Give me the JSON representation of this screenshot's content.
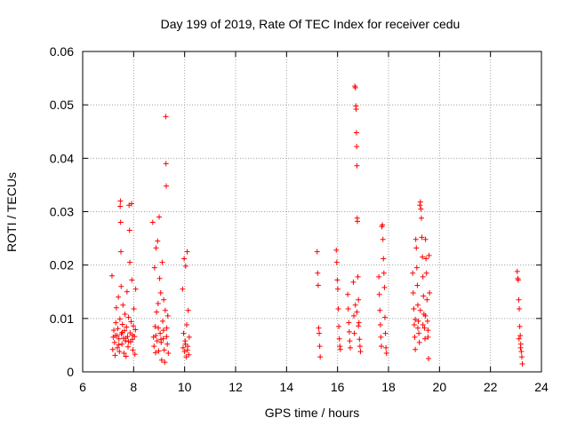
{
  "chart_data": {
    "type": "scatter",
    "title": "Day 199 of 2019, Rate Of TEC Index for receiver cedu",
    "xlabel": "GPS time / hours",
    "ylabel": "ROTI / TECUs",
    "xlim": [
      6,
      24
    ],
    "ylim": [
      0,
      0.06
    ],
    "xticks": [
      6,
      8,
      10,
      12,
      14,
      16,
      18,
      20,
      22,
      24
    ],
    "xtick_labels": [
      "6",
      "8",
      "10",
      "12",
      "14",
      "16",
      "18",
      "20",
      "22",
      "24"
    ],
    "yticks": [
      0,
      0.01,
      0.02,
      0.03,
      0.04,
      0.05,
      0.06
    ],
    "ytick_labels": [
      "0",
      "0.01",
      "0.02",
      "0.03",
      "0.04",
      "0.05",
      "0.06"
    ],
    "grid": true,
    "marker": "+",
    "color": "#ff0000",
    "series": [
      {
        "name": "ROTI",
        "points": [
          [
            7.15,
            0.018
          ],
          [
            7.18,
            0.0042
          ],
          [
            7.2,
            0.0065
          ],
          [
            7.22,
            0.0078
          ],
          [
            7.25,
            0.0055
          ],
          [
            7.27,
            0.0031
          ],
          [
            7.3,
            0.0092
          ],
          [
            7.32,
            0.012
          ],
          [
            7.35,
            0.0068
          ],
          [
            7.36,
            0.0045
          ],
          [
            7.38,
            0.0081
          ],
          [
            7.4,
            0.014
          ],
          [
            7.42,
            0.0062
          ],
          [
            7.44,
            0.0038
          ],
          [
            7.46,
            0.0099
          ],
          [
            7.47,
            0.031
          ],
          [
            7.48,
            0.032
          ],
          [
            7.49,
            0.028
          ],
          [
            7.5,
            0.0225
          ],
          [
            7.51,
            0.016
          ],
          [
            7.52,
            0.0071
          ],
          [
            7.54,
            0.0052
          ],
          [
            7.56,
            0.0089
          ],
          [
            7.58,
            0.0125
          ],
          [
            7.6,
            0.0063
          ],
          [
            7.62,
            0.0035
          ],
          [
            7.64,
            0.0077
          ],
          [
            7.66,
            0.0108
          ],
          [
            7.68,
            0.0058
          ],
          [
            7.7,
            0.0029
          ],
          [
            7.72,
            0.0084
          ],
          [
            7.74,
            0.015
          ],
          [
            7.76,
            0.0066
          ],
          [
            7.78,
            0.0047
          ],
          [
            7.8,
            0.0102
          ],
          [
            7.82,
            0.0312
          ],
          [
            7.84,
            0.0265
          ],
          [
            7.85,
            0.0205
          ],
          [
            7.86,
            0.0073
          ],
          [
            7.88,
            0.0056
          ],
          [
            7.9,
            0.0094
          ],
          [
            7.92,
            0.0315
          ],
          [
            7.93,
            0.0172
          ],
          [
            7.95,
            0.0061
          ],
          [
            7.97,
            0.0041
          ],
          [
            7.99,
            0.0086
          ],
          [
            8.01,
            0.0118
          ],
          [
            8.03,
            0.0066
          ],
          [
            8.05,
            0.0033
          ],
          [
            8.07,
            0.0079
          ],
          [
            8.08,
            0.0155
          ],
          [
            7.28,
            0.0068
          ],
          [
            7.42,
            0.0051
          ],
          [
            7.55,
            0.0074
          ],
          [
            7.68,
            0.0063
          ],
          [
            7.8,
            0.0057
          ],
          [
            7.95,
            0.0069
          ],
          [
            8.75,
            0.028
          ],
          [
            8.78,
            0.0065
          ],
          [
            8.8,
            0.0048
          ],
          [
            8.82,
            0.0195
          ],
          [
            8.84,
            0.0085
          ],
          [
            8.86,
            0.0036
          ],
          [
            8.88,
            0.0232
          ],
          [
            8.9,
            0.0112
          ],
          [
            8.92,
            0.0058
          ],
          [
            8.94,
            0.0245
          ],
          [
            8.96,
            0.0128
          ],
          [
            8.98,
            0.0039
          ],
          [
            9.0,
            0.029
          ],
          [
            9.02,
            0.0175
          ],
          [
            9.04,
            0.0072
          ],
          [
            9.06,
            0.0148
          ],
          [
            9.08,
            0.0055
          ],
          [
            9.1,
            0.0022
          ],
          [
            9.12,
            0.0205
          ],
          [
            9.14,
            0.0095
          ],
          [
            9.16,
            0.0062
          ],
          [
            9.18,
            0.0135
          ],
          [
            9.2,
            0.0041
          ],
          [
            9.22,
            0.0018
          ],
          [
            9.24,
            0.0115
          ],
          [
            9.26,
            0.0478
          ],
          [
            9.27,
            0.039
          ],
          [
            9.28,
            0.0348
          ],
          [
            9.3,
            0.0082
          ],
          [
            9.32,
            0.0052
          ],
          [
            9.34,
            0.0105
          ],
          [
            9.36,
            0.0035
          ],
          [
            8.87,
            0.0068
          ],
          [
            8.97,
            0.0082
          ],
          [
            9.07,
            0.0061
          ],
          [
            9.17,
            0.0078
          ],
          [
            9.29,
            0.0066
          ],
          [
            9.92,
            0.0155
          ],
          [
            9.94,
            0.0045
          ],
          [
            9.96,
            0.0072
          ],
          [
            9.98,
            0.0212
          ],
          [
            10.0,
            0.0038
          ],
          [
            10.02,
            0.0058
          ],
          [
            10.04,
            0.0198
          ],
          [
            10.06,
            0.0028
          ],
          [
            10.08,
            0.0088
          ],
          [
            10.1,
            0.0225
          ],
          [
            10.12,
            0.0048
          ],
          [
            10.14,
            0.0115
          ],
          [
            10.16,
            0.0032
          ],
          [
            10.18,
            0.0065
          ],
          [
            10.03,
            0.0052
          ],
          [
            10.11,
            0.0041
          ],
          [
            15.2,
            0.0225
          ],
          [
            15.22,
            0.0185
          ],
          [
            15.24,
            0.0162
          ],
          [
            15.26,
            0.0082
          ],
          [
            15.28,
            0.0072
          ],
          [
            15.3,
            0.0048
          ],
          [
            15.32,
            0.0028
          ],
          [
            15.95,
            0.0228
          ],
          [
            15.97,
            0.0205
          ],
          [
            15.99,
            0.0172
          ],
          [
            16.01,
            0.0155
          ],
          [
            16.03,
            0.0118
          ],
          [
            16.05,
            0.0085
          ],
          [
            16.07,
            0.0062
          ],
          [
            16.09,
            0.0048
          ],
          [
            16.11,
            0.0042
          ],
          [
            16.4,
            0.0145
          ],
          [
            16.42,
            0.0118
          ],
          [
            16.44,
            0.0092
          ],
          [
            16.46,
            0.0075
          ],
          [
            16.48,
            0.0058
          ],
          [
            16.5,
            0.0045
          ],
          [
            16.62,
            0.0168
          ],
          [
            16.64,
            0.0105
          ],
          [
            16.66,
            0.0072
          ],
          [
            16.68,
            0.0535
          ],
          [
            16.7,
            0.0532
          ],
          [
            16.72,
            0.0498
          ],
          [
            16.73,
            0.0492
          ],
          [
            16.74,
            0.0448
          ],
          [
            16.75,
            0.0422
          ],
          [
            16.76,
            0.0386
          ],
          [
            16.77,
            0.0288
          ],
          [
            16.78,
            0.0282
          ],
          [
            16.8,
            0.0178
          ],
          [
            16.82,
            0.0135
          ],
          [
            16.84,
            0.0092
          ],
          [
            16.86,
            0.0061
          ],
          [
            16.88,
            0.0048
          ],
          [
            16.9,
            0.0038
          ],
          [
            16.7,
            0.0125
          ],
          [
            16.76,
            0.0112
          ],
          [
            16.82,
            0.0086
          ],
          [
            17.62,
            0.0178
          ],
          [
            17.64,
            0.0145
          ],
          [
            17.66,
            0.0115
          ],
          [
            17.68,
            0.0088
          ],
          [
            17.7,
            0.0065
          ],
          [
            17.72,
            0.0048
          ],
          [
            17.74,
            0.0272
          ],
          [
            17.76,
            0.0275
          ],
          [
            17.78,
            0.0248
          ],
          [
            17.8,
            0.0212
          ],
          [
            17.82,
            0.0185
          ],
          [
            17.84,
            0.0158
          ],
          [
            17.86,
            0.0102
          ],
          [
            17.88,
            0.0072
          ],
          [
            17.9,
            0.0045
          ],
          [
            17.92,
            0.0035
          ],
          [
            18.95,
            0.0185
          ],
          [
            18.97,
            0.0148
          ],
          [
            18.99,
            0.0118
          ],
          [
            19.01,
            0.0088
          ],
          [
            19.03,
            0.0065
          ],
          [
            19.05,
            0.0042
          ],
          [
            19.07,
            0.0248
          ],
          [
            19.09,
            0.0232
          ],
          [
            19.11,
            0.0195
          ],
          [
            19.13,
            0.0162
          ],
          [
            19.15,
            0.0125
          ],
          [
            19.17,
            0.0095
          ],
          [
            19.19,
            0.0072
          ],
          [
            19.21,
            0.0055
          ],
          [
            19.23,
            0.0312
          ],
          [
            19.25,
            0.0318
          ],
          [
            19.27,
            0.0305
          ],
          [
            19.29,
            0.0288
          ],
          [
            19.31,
            0.0252
          ],
          [
            19.33,
            0.0215
          ],
          [
            19.35,
            0.0178
          ],
          [
            19.37,
            0.0142
          ],
          [
            19.39,
            0.0108
          ],
          [
            19.41,
            0.0082
          ],
          [
            19.43,
            0.0062
          ],
          [
            19.45,
            0.0248
          ],
          [
            19.47,
            0.0212
          ],
          [
            19.49,
            0.0185
          ],
          [
            19.51,
            0.0135
          ],
          [
            19.53,
            0.0095
          ],
          [
            19.55,
            0.0065
          ],
          [
            19.57,
            0.0025
          ],
          [
            19.59,
            0.0218
          ],
          [
            19.61,
            0.0148
          ],
          [
            19.05,
            0.0098
          ],
          [
            19.15,
            0.0082
          ],
          [
            19.25,
            0.0115
          ],
          [
            19.35,
            0.0088
          ],
          [
            19.45,
            0.0105
          ],
          [
            19.55,
            0.0078
          ],
          [
            23.05,
            0.0188
          ],
          [
            23.07,
            0.0175
          ],
          [
            23.09,
            0.0172
          ],
          [
            23.11,
            0.0135
          ],
          [
            23.13,
            0.0118
          ],
          [
            23.15,
            0.0085
          ],
          [
            23.17,
            0.0068
          ],
          [
            23.19,
            0.0052
          ],
          [
            23.21,
            0.0038
          ],
          [
            23.23,
            0.0028
          ],
          [
            23.25,
            0.0015
          ],
          [
            23.12,
            0.0062
          ],
          [
            23.18,
            0.0045
          ]
        ]
      }
    ]
  }
}
